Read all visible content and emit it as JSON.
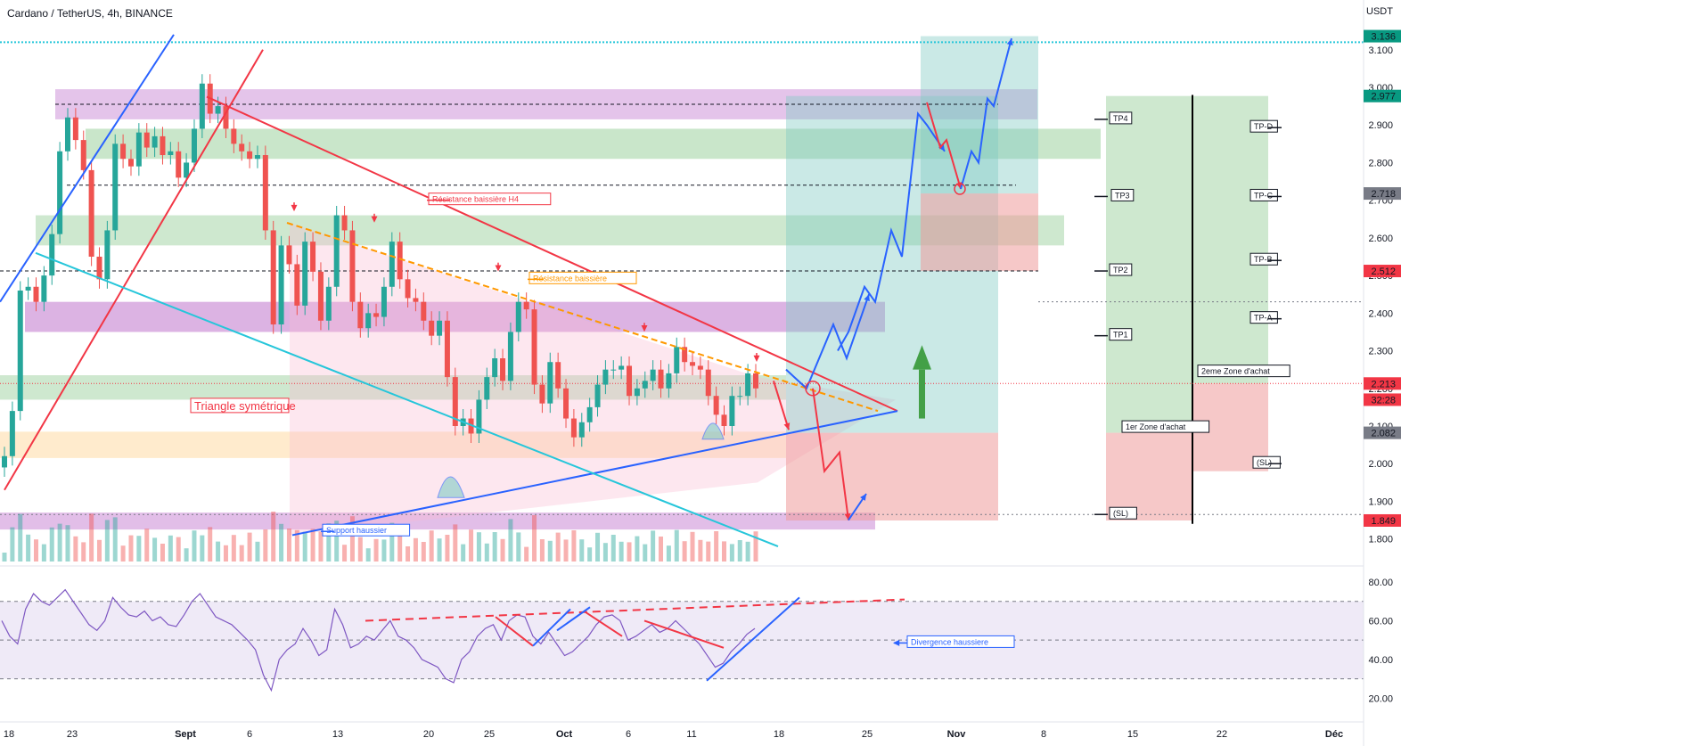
{
  "header": {
    "title": "Cardano / TetherUS, 4h, BINANCE",
    "currency": "USDT"
  },
  "colors": {
    "up": "#26a69a",
    "down": "#ef5350",
    "rsi": "#7e57c2",
    "blue": "#2962ff",
    "red": "#f23645",
    "orange": "#ff9800",
    "cyan": "#26c6da"
  },
  "chart_data": [
    {
      "type": "line",
      "name": "price",
      "ylim": [
        1.74,
        3.18
      ],
      "x_ticks": [
        "18",
        "23",
        "Sept",
        "6",
        "13",
        "20",
        "25",
        "Oct",
        "6",
        "11",
        "18",
        "25",
        "Nov",
        "8",
        "15",
        "22",
        "Déc"
      ],
      "y_ticks": [
        "1.800",
        "1.900",
        "2.000",
        "2.100",
        "2.200",
        "2.300",
        "2.400",
        "2.500",
        "2.600",
        "2.700",
        "2.800",
        "2.900",
        "3.000",
        "3.100"
      ],
      "price_badges": [
        {
          "text": "3.136",
          "value": 3.136,
          "color": "#089981"
        },
        {
          "text": "2.977",
          "value": 2.977,
          "color": "#089981"
        },
        {
          "text": "2.718",
          "value": 2.718,
          "color": "#787b86"
        },
        {
          "text": "2.512",
          "value": 2.512,
          "color": "#f23645"
        },
        {
          "text": "2.213",
          "value": 2.213,
          "color": "#f23645"
        },
        {
          "text": "32:28",
          "value": 2.17,
          "color": "#f23645"
        },
        {
          "text": "2.082",
          "value": 2.082,
          "color": "#787b86"
        },
        {
          "text": "1.849",
          "value": 1.849,
          "color": "#f23645"
        }
      ],
      "annotations": [
        {
          "text": "Résistance baissière H4",
          "color": "#f23645"
        },
        {
          "text": "Résistance baissière",
          "color": "#ff9800"
        },
        {
          "text": "Triangle symétrique",
          "color": "#f23645"
        },
        {
          "text": "Support haussier",
          "color": "#2962ff"
        },
        {
          "text": "TP4",
          "color": "#131722"
        },
        {
          "text": "TP3",
          "color": "#131722"
        },
        {
          "text": "TP2",
          "color": "#131722"
        },
        {
          "text": "TP1",
          "color": "#131722"
        },
        {
          "text": "(SL)",
          "color": "#131722"
        },
        {
          "text": "TP-D",
          "color": "#131722"
        },
        {
          "text": "TP-C",
          "color": "#131722"
        },
        {
          "text": "TP-B",
          "color": "#131722"
        },
        {
          "text": "TP-A",
          "color": "#131722"
        },
        {
          "text": "2eme Zone d'achat",
          "color": "#131722"
        },
        {
          "text": "1er Zone d'achat",
          "color": "#131722"
        },
        {
          "text": "(SL)",
          "color": "#131722"
        }
      ],
      "series": [
        {
          "values": [
            2.02,
            2.14,
            2.46,
            2.47,
            2.43,
            2.5,
            2.61,
            2.83,
            2.92,
            2.86,
            2.78,
            2.55,
            2.49,
            2.62,
            2.85,
            2.81,
            2.79,
            2.88,
            2.84,
            2.87,
            2.82,
            2.83,
            2.76,
            2.8,
            2.89,
            3.01,
            2.93,
            2.95,
            2.89,
            2.85,
            2.83,
            2.81,
            2.82,
            2.62,
            2.37,
            2.58,
            2.53,
            2.42,
            2.59,
            2.51,
            2.38,
            2.47,
            2.66,
            2.62,
            2.43,
            2.36,
            2.4,
            2.39,
            2.47,
            2.59,
            2.49,
            2.44,
            2.43,
            2.38,
            2.34,
            2.38,
            2.23,
            2.1,
            2.12,
            2.08,
            2.17,
            2.23,
            2.28,
            2.22,
            2.35,
            2.43,
            2.41,
            2.21,
            2.16,
            2.27,
            2.2,
            2.12,
            2.07,
            2.11,
            2.15,
            2.21,
            2.25,
            2.25,
            2.26,
            2.18,
            2.2,
            2.22,
            2.25,
            2.2,
            2.24,
            2.31,
            2.27,
            2.26,
            2.25,
            2.18,
            2.13,
            2.1,
            2.18,
            2.18,
            2.24,
            2.2
          ]
        }
      ]
    },
    {
      "type": "line",
      "name": "RSI",
      "ylim": [
        10,
        86
      ],
      "y_ticks": [
        "80.00",
        "60.00",
        "40.00",
        "20.00"
      ],
      "levels": [
        70,
        50,
        30
      ],
      "series": [
        {
          "values": [
            60,
            52,
            48,
            66,
            74,
            70,
            68,
            72,
            76,
            70,
            64,
            58,
            55,
            60,
            72,
            67,
            63,
            62,
            65,
            60,
            62,
            58,
            57,
            63,
            70,
            74,
            68,
            62,
            60,
            58,
            54,
            50,
            45,
            32,
            24,
            40,
            45,
            48,
            56,
            50,
            42,
            45,
            66,
            58,
            46,
            48,
            52,
            50,
            55,
            60,
            52,
            50,
            46,
            40,
            38,
            36,
            30,
            28,
            40,
            44,
            52,
            56,
            58,
            50,
            60,
            63,
            62,
            52,
            48,
            54,
            48,
            42,
            44,
            48,
            52,
            58,
            62,
            63,
            60,
            50,
            52,
            55,
            58,
            54,
            56,
            60,
            56,
            52,
            48,
            42,
            36,
            38,
            44,
            48,
            53,
            56
          ]
        }
      ]
    }
  ]
}
